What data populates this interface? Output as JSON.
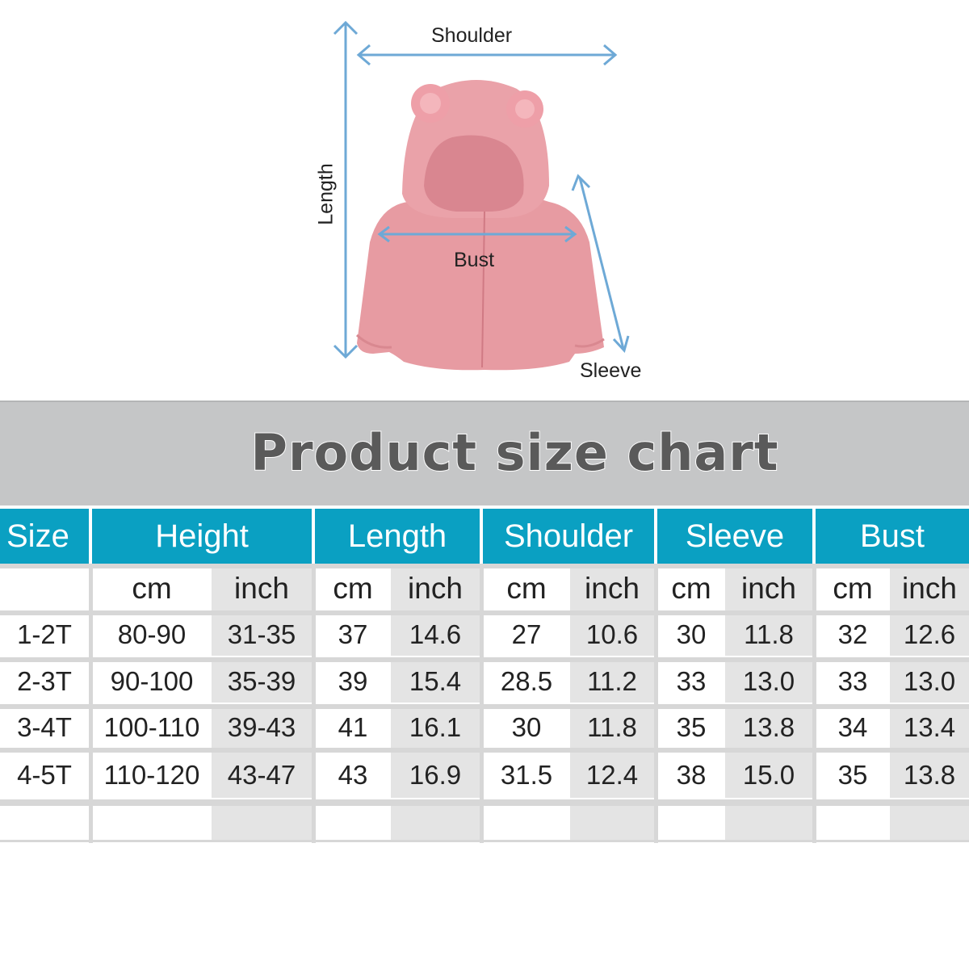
{
  "diagram": {
    "labels": {
      "shoulder": "Shoulder",
      "length": "Length",
      "bust": "Bust",
      "sleeve": "Sleeve"
    },
    "garment_image": "pink-fleece-bear-ear-hoodie",
    "arrow_color": "#6ea9d6",
    "garment_color": "#e79ba2"
  },
  "banner": {
    "title": "Product size chart",
    "background": "#c5c6c7"
  },
  "table": {
    "header_color": "#0aa0c2",
    "size_header": "Size",
    "groups": [
      "Height",
      "Length",
      "Shoulder",
      "Sleeve",
      "Bust"
    ],
    "units": [
      "cm",
      "inch"
    ],
    "rows": [
      {
        "size": "1-2T",
        "values": [
          "80-90",
          "31-35",
          "37",
          "14.6",
          "27",
          "10.6",
          "30",
          "11.8",
          "32",
          "12.6"
        ]
      },
      {
        "size": "2-3T",
        "values": [
          "90-100",
          "35-39",
          "39",
          "15.4",
          "28.5",
          "11.2",
          "33",
          "13.0",
          "33",
          "13.0"
        ]
      },
      {
        "size": "3-4T",
        "values": [
          "100-110",
          "39-43",
          "41",
          "16.1",
          "30",
          "11.8",
          "35",
          "13.8",
          "34",
          "13.4"
        ]
      },
      {
        "size": "4-5T",
        "values": [
          "110-120",
          "43-47",
          "43",
          "16.9",
          "31.5",
          "12.4",
          "38",
          "15.0",
          "35",
          "13.8"
        ]
      }
    ]
  }
}
